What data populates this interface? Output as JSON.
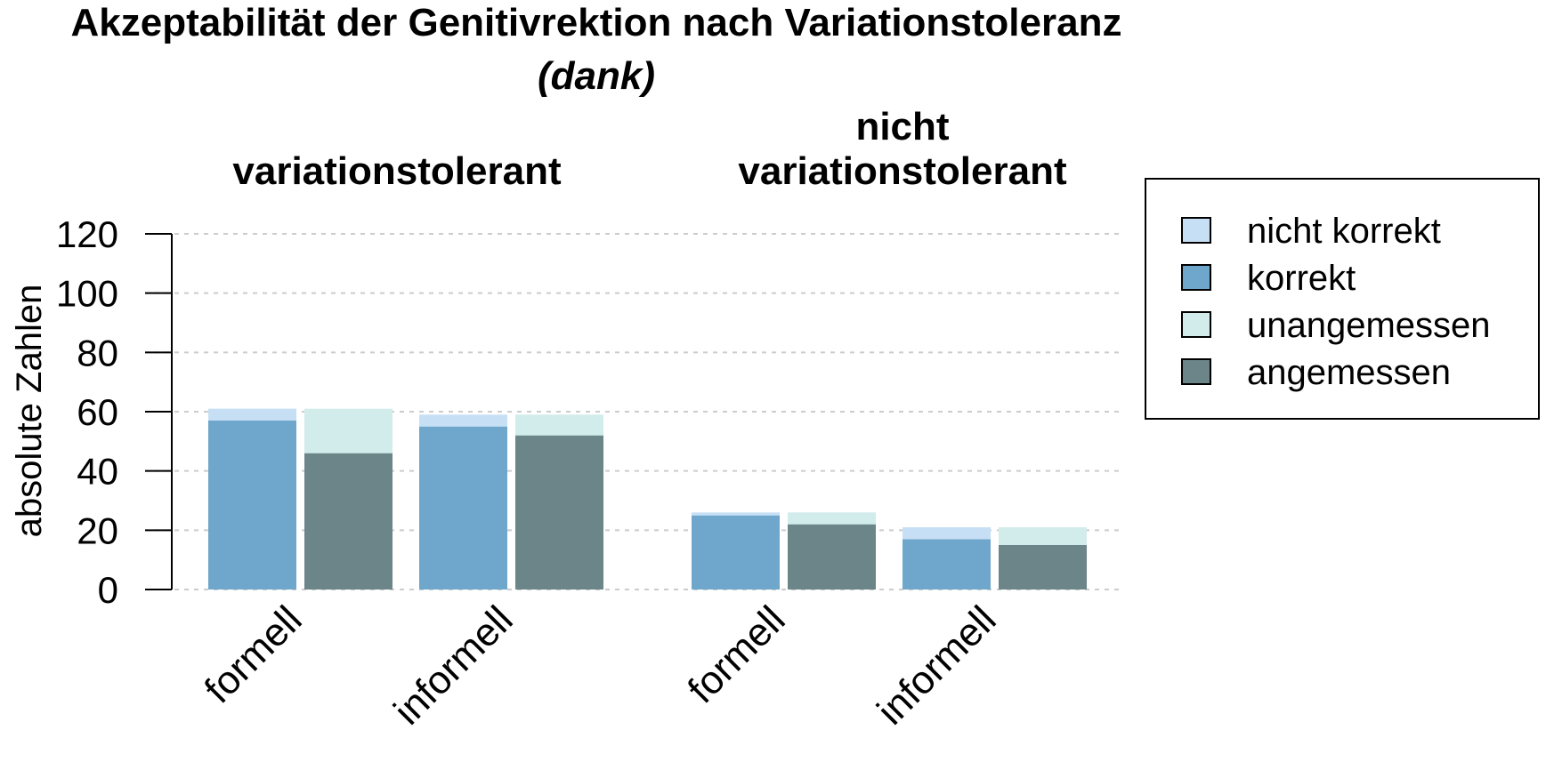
{
  "chart_data": {
    "type": "bar",
    "title": "Akzeptabilität der Genitivrektion nach Variationstoleranz",
    "subtitle": "(dank)",
    "ylabel": "absolute Zahlen",
    "xlabel": "",
    "ylim": [
      0,
      120
    ],
    "yticks": [
      0,
      20,
      40,
      60,
      80,
      100,
      120
    ],
    "grid": true,
    "legend_position": "top-right",
    "groups": [
      {
        "label_lines": [
          "variationstolerant"
        ],
        "categories": [
          {
            "label": "formell",
            "korrektheit": {
              "korrekt": 57,
              "nicht_korrekt": 4
            },
            "angemessenheit": {
              "angemessen": 46,
              "unangemessen": 15
            }
          },
          {
            "label": "informell",
            "korrektheit": {
              "korrekt": 55,
              "nicht_korrekt": 4
            },
            "angemessenheit": {
              "angemessen": 52,
              "unangemessen": 7
            }
          }
        ]
      },
      {
        "label_lines": [
          "nicht",
          "variationstolerant"
        ],
        "categories": [
          {
            "label": "formell",
            "korrektheit": {
              "korrekt": 25,
              "nicht_korrekt": 1
            },
            "angemessenheit": {
              "angemessen": 22,
              "unangemessen": 4
            }
          },
          {
            "label": "informell",
            "korrektheit": {
              "korrekt": 17,
              "nicht_korrekt": 4
            },
            "angemessenheit": {
              "angemessen": 15,
              "unangemessen": 6
            }
          }
        ]
      }
    ],
    "legend": [
      {
        "label": "nicht korrekt",
        "color": "#c6dff5"
      },
      {
        "label": "korrekt",
        "color": "#6fa6cc"
      },
      {
        "label": "unangemessen",
        "color": "#d1ecea"
      },
      {
        "label": "angemessen",
        "color": "#6b8589"
      }
    ],
    "colors": {
      "korrekt": "#6fa6cc",
      "nicht_korrekt": "#c6dff5",
      "angemessen": "#6b8589",
      "unangemessen": "#d1ecea",
      "grid": "#cccccc"
    }
  }
}
